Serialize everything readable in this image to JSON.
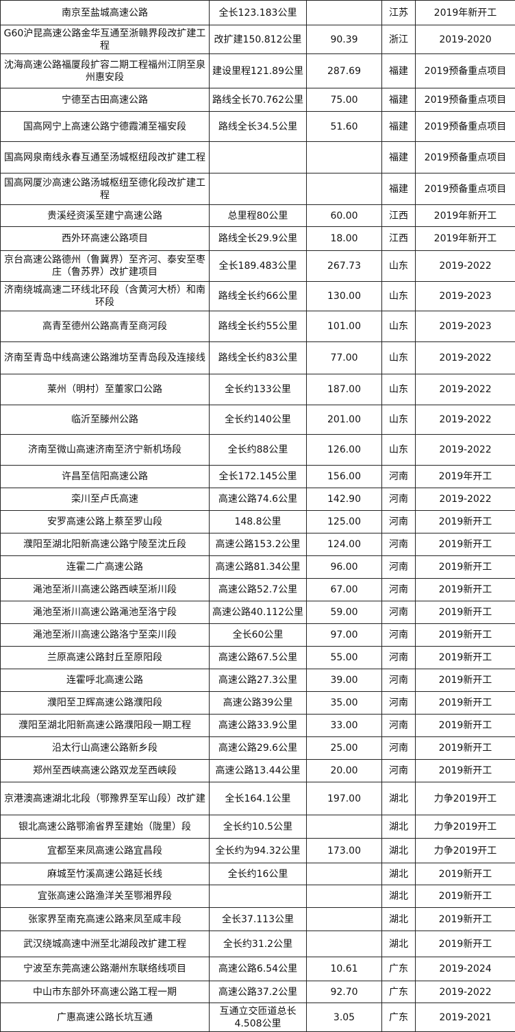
{
  "table": {
    "rows": [
      [
        "南京至盐城高速公路",
        "全长123.183公里",
        null,
        "江苏",
        "2019年新开工"
      ],
      [
        "G60沪昆高速公路金华互通至浙赣界段改扩建工程",
        "改扩建150.812公里",
        "90.39",
        "浙江",
        "2019-2020"
      ],
      [
        "沈海高速公路福厦段扩容二期工程福州江阴至泉州惠安段",
        "建设里程121.89公里",
        "287.69",
        "福建",
        "2019预备重点项目"
      ],
      [
        "宁德至古田高速公路",
        "路线全长70.762公里",
        "75.00",
        "福建",
        "2019预备重点项目"
      ],
      [
        "国高网宁上高速公路宁德霞浦至福安段",
        "路线全长34.5公里",
        "51.60",
        "福建",
        "2019预备重点项目"
      ],
      [
        "国高网泉南线永春互通至汤城枢纽段改扩建工程",
        null,
        null,
        "福建",
        "2019预备重点项目"
      ],
      [
        "国高网厦沙高速公路汤城枢纽至德化段改扩建工程",
        null,
        null,
        "福建",
        "2019预备重点项目"
      ],
      [
        "贵溪经资溪至建宁高速公路",
        "总里程80公里",
        "60.00",
        "江西",
        "2019年新开工"
      ],
      [
        "西外环高速公路项目",
        "路线全长29.9公里",
        "18.00",
        "江西",
        "2019年新开工"
      ],
      [
        "京台高速公路德州（鲁冀界）至齐河、泰安至枣庄（鲁苏界）改扩建项目",
        "全长189.483公里",
        "267.73",
        "山东",
        "2019-2022"
      ],
      [
        "济南绕城高速二环线北环段（含黄河大桥）和南环段",
        "路线全长约66公里",
        "130.00",
        "山东",
        "2019-2023"
      ],
      [
        "高青至德州公路高青至商河段",
        "路线全长约55公里",
        "101.00",
        "山东",
        "2019-2023"
      ],
      [
        "济南至青岛中线高速公路潍坊至青岛段及连接线",
        "路线全长约83公里",
        "77.00",
        "山东",
        "2019-2022"
      ],
      [
        "莱州（明村）至董家口公路",
        "全长约133公里",
        "187.00",
        "山东",
        "2019-2022"
      ],
      [
        "临沂至滕州公路",
        "全长约140公里",
        "201.00",
        "山东",
        "2019-2022"
      ],
      [
        "济南至微山高速济南至济宁新机场段",
        "全长约88公里",
        "126.00",
        "山东",
        "2019-2022"
      ],
      [
        "许昌至信阳高速公路",
        "全长172.145公里",
        "156.00",
        "河南",
        "2019年开工"
      ],
      [
        "栾川至卢氏高速",
        "高速公路74.6公里",
        "142.90",
        "河南",
        "2019-2022"
      ],
      [
        "安罗高速公路上蔡至罗山段",
        "148.8公里",
        "125.00",
        "河南",
        "2019新开工"
      ],
      [
        "濮阳至湖北阳新高速公路宁陵至沈丘段",
        "高速公路153.2公里",
        "124.00",
        "河南",
        "2019新开工"
      ],
      [
        "连霍二广高速公路",
        "高速公路81.34公里",
        "96.00",
        "河南",
        "2019新开工"
      ],
      [
        "渑池至淅川高速公路西峡至淅川段",
        "高速公路52.7公里",
        "67.00",
        "河南",
        "2019新开工"
      ],
      [
        "渑池至淅川高速公路渑池至洛宁段",
        "高速公路40.112公里",
        "59.00",
        "河南",
        "2019新开工"
      ],
      [
        "渑池至淅川高速公路洛宁至栾川段",
        "全长60公里",
        "97.00",
        "河南",
        "2019新开工"
      ],
      [
        "兰原高速公路封丘至原阳段",
        "高速公路67.5公里",
        "55.00",
        "河南",
        "2019新开工"
      ],
      [
        "连霍呼北高速公路",
        "高速公路27.3公里",
        "39.00",
        "河南",
        "2019新开工"
      ],
      [
        "濮阳至卫辉高速公路濮阳段",
        "高速公路39公里",
        "35.00",
        "河南",
        "2019新开工"
      ],
      [
        "濮阳至湖北阳新高速公路濮阳段一期工程",
        "高速公路33.9公里",
        "33.00",
        "河南",
        "2019新开工"
      ],
      [
        "沿太行山高速公路新乡段",
        "高速公路29.6公里",
        "25.00",
        "河南",
        "2019新开工"
      ],
      [
        "郑州至西峡高速公路双龙至西峡段",
        "高速公路13.44公里",
        "20.00",
        "河南",
        "2019新开工"
      ],
      [
        "京港澳高速湖北北段（鄂豫界至军山段）改扩建",
        "全长164.1公里",
        "197.00",
        "湖北",
        "力争2019开工"
      ],
      [
        "银北高速公路鄂渝省界至建始（陇里）段",
        "全长约10.5公里",
        null,
        "湖北",
        "力争2019开工"
      ],
      [
        "宜都至来凤高速公路宜昌段",
        "全长约为94.32公里",
        "173.00",
        "湖北",
        "力争2019开工"
      ],
      [
        "麻城至竹溪高速公路延长线",
        "全长约16公里",
        null,
        "湖北",
        "2019新开工"
      ],
      [
        "宜张高速公路渔洋关至鄂湘界段",
        null,
        null,
        "湖北",
        "2019新开工"
      ],
      [
        "张家界至南充高速公路来凤至咸丰段",
        "全长37.113公里",
        null,
        "湖北",
        "2019新开工"
      ],
      [
        "武汉绕城高速中洲至北湖段改扩建工程",
        "全长约31.2公里",
        null,
        "湖北",
        "2019新开工"
      ],
      [
        "宁波至东莞高速公路潮州东联络线项目",
        "高速公路6.54公里",
        "10.61",
        "广东",
        "2019-2024"
      ],
      [
        "中山市东部外环高速公路工程一期",
        "高速公路37.2公里",
        "92.70",
        "广东",
        "2019-2022"
      ],
      [
        "广惠高速公路长坑互通",
        "互通立交匝道总长4.508公里",
        "3.05",
        "广东",
        "2019-2021"
      ]
    ]
  }
}
